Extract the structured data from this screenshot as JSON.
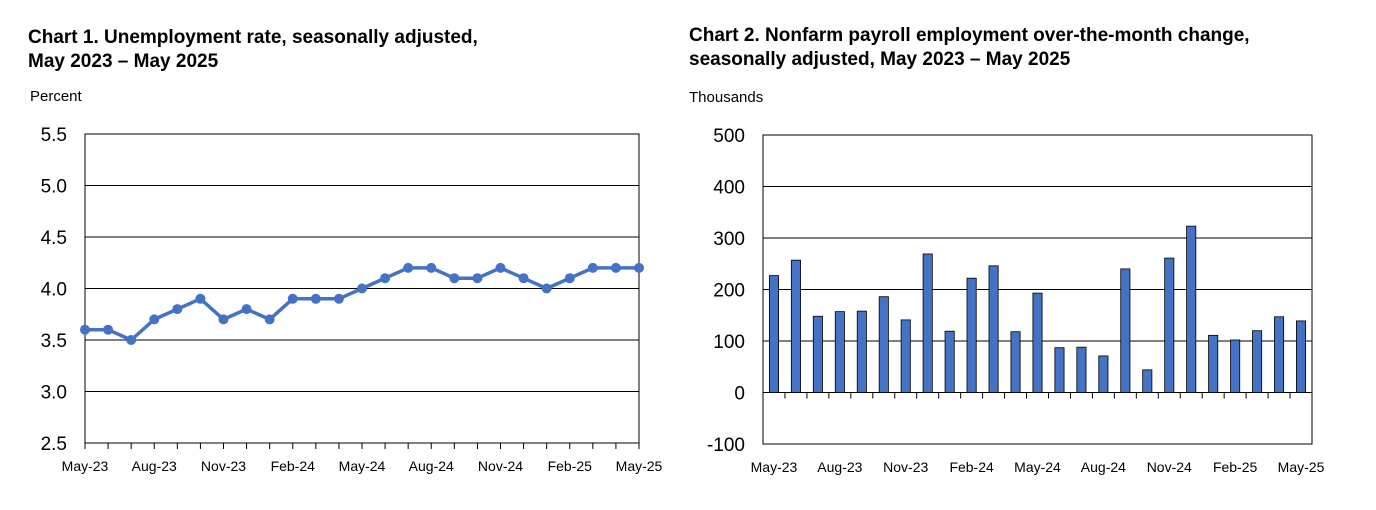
{
  "chart_data": [
    {
      "type": "line",
      "title": "Chart 1. Unemployment rate, seasonally adjusted,",
      "subtitle": "May 2023 – May 2025",
      "ylabel": "Percent",
      "ylim": [
        2.5,
        5.5
      ],
      "yticks": [
        "5.5",
        "5.0",
        "4.5",
        "4.0",
        "3.5",
        "3.0",
        "2.5"
      ],
      "xtick_labels": [
        "May-23",
        "Aug-23",
        "Nov-23",
        "Feb-24",
        "May-24",
        "Aug-24",
        "Nov-24",
        "Feb-25",
        "May-25"
      ],
      "grid": true,
      "color": "#4472C4",
      "x": [
        "2023-05",
        "2023-06",
        "2023-07",
        "2023-08",
        "2023-09",
        "2023-10",
        "2023-11",
        "2023-12",
        "2024-01",
        "2024-02",
        "2024-03",
        "2024-04",
        "2024-05",
        "2024-06",
        "2024-07",
        "2024-08",
        "2024-09",
        "2024-10",
        "2024-11",
        "2024-12",
        "2025-01",
        "2025-02",
        "2025-03",
        "2025-04",
        "2025-05"
      ],
      "values": [
        3.6,
        3.6,
        3.5,
        3.7,
        3.8,
        3.9,
        3.7,
        3.8,
        3.7,
        3.9,
        3.9,
        3.9,
        4.0,
        4.1,
        4.2,
        4.2,
        4.1,
        4.1,
        4.2,
        4.1,
        4.0,
        4.1,
        4.2,
        4.2,
        4.2
      ]
    },
    {
      "type": "bar",
      "title": "Chart 2. Nonfarm payroll employment over-the-month change,",
      "subtitle": "seasonally adjusted, May 2023 – May 2025",
      "ylabel": "Thousands",
      "ylim": [
        -100,
        500
      ],
      "yticks": [
        "500",
        "400",
        "300",
        "200",
        "100",
        "0",
        "-100"
      ],
      "xtick_labels": [
        "May-23",
        "Aug-23",
        "Nov-23",
        "Feb-24",
        "May-24",
        "Aug-24",
        "Nov-24",
        "Feb-25",
        "May-25"
      ],
      "grid": true,
      "color": "#4472C4",
      "x": [
        "2023-05",
        "2023-06",
        "2023-07",
        "2023-08",
        "2023-09",
        "2023-10",
        "2023-11",
        "2023-12",
        "2024-01",
        "2024-02",
        "2024-03",
        "2024-04",
        "2024-05",
        "2024-06",
        "2024-07",
        "2024-08",
        "2024-09",
        "2024-10",
        "2024-11",
        "2024-12",
        "2025-01",
        "2025-02",
        "2025-03",
        "2025-04",
        "2025-05"
      ],
      "values": [
        227,
        257,
        148,
        157,
        158,
        186,
        141,
        269,
        119,
        222,
        246,
        118,
        193,
        87,
        88,
        71,
        240,
        44,
        261,
        323,
        111,
        102,
        120,
        147,
        139
      ]
    }
  ]
}
